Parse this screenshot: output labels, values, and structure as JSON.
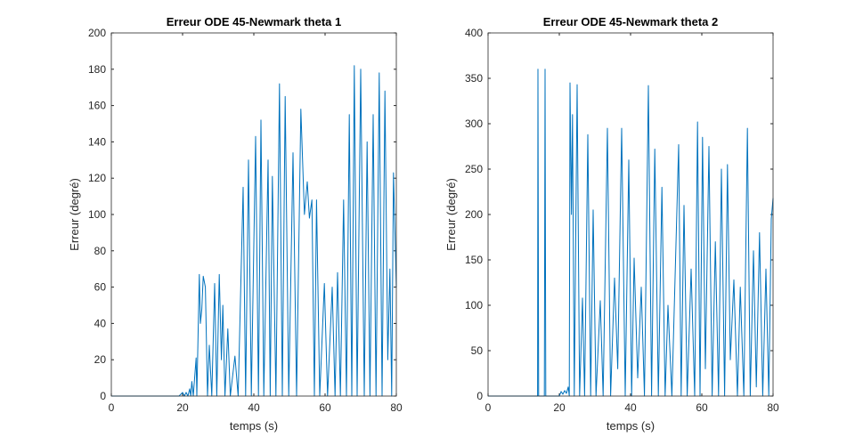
{
  "chart_data": [
    {
      "type": "line",
      "title": "Erreur ODE 45-Newmark theta 1",
      "x_label": "temps (s)",
      "y_label": "Erreur (degré)",
      "xlim": [
        0,
        80
      ],
      "xticks": [
        0,
        20,
        40,
        60,
        80
      ],
      "ylim": [
        0,
        200
      ],
      "yticks": [
        0,
        20,
        40,
        60,
        80,
        100,
        120,
        140,
        160,
        180,
        200
      ],
      "grid": false,
      "color": "#0072bd",
      "x": [
        0,
        19,
        20,
        20.5,
        21,
        21.5,
        22,
        22.3,
        22.6,
        23,
        23.8,
        24,
        24.7,
        25,
        25.4,
        25.8,
        26.4,
        27,
        27.5,
        28.2,
        29,
        29.6,
        30.3,
        30.9,
        31.3,
        31.9,
        32.7,
        33.4,
        34.7,
        35.6,
        37,
        37.7,
        38.5,
        39.3,
        40.5,
        41.3,
        42,
        42.8,
        44,
        44.6,
        45.2,
        46.2,
        47.2,
        48,
        48.8,
        49.8,
        51,
        52,
        53.2,
        54.2,
        55,
        55.6,
        56.3,
        57,
        57.6,
        58.5,
        59.8,
        60.7,
        62,
        62.8,
        63.5,
        64.3,
        65.2,
        66,
        66.8,
        67.5,
        68.2,
        69,
        70,
        71,
        71.8,
        72.6,
        73.5,
        74.3,
        75.2,
        76,
        76.8,
        77.6,
        78.2,
        78.7,
        79.2,
        80
      ],
      "values": [
        0,
        0,
        2,
        0,
        2,
        0,
        4,
        0,
        8,
        0,
        21,
        0,
        67,
        40,
        48,
        66,
        60,
        0,
        28,
        0,
        62,
        0,
        67,
        20,
        50,
        0,
        37,
        0,
        22,
        0,
        115,
        0,
        130,
        0,
        143,
        0,
        152,
        0,
        130,
        0,
        121,
        0,
        172,
        0,
        165,
        0,
        134,
        0,
        158,
        100,
        118,
        98,
        108,
        0,
        108,
        0,
        62,
        0,
        60,
        0,
        68,
        0,
        108,
        0,
        155,
        0,
        182,
        0,
        180,
        0,
        140,
        0,
        155,
        0,
        178,
        0,
        168,
        20,
        70,
        0,
        123,
        60
      ]
    },
    {
      "type": "line",
      "title": "Erreur ODE 45-Newmark theta 2",
      "x_label": "temps (s)",
      "y_label": "Erreur (degré)",
      "xlim": [
        0,
        80
      ],
      "xticks": [
        0,
        20,
        40,
        60,
        80
      ],
      "ylim": [
        0,
        400
      ],
      "yticks": [
        0,
        50,
        100,
        150,
        200,
        250,
        300,
        350,
        400
      ],
      "grid": false,
      "color": "#0072bd",
      "x": [
        0,
        13.9,
        14,
        14.2,
        15.8,
        16,
        16.2,
        20,
        20.5,
        21,
        21.5,
        22,
        22.5,
        22.8,
        23,
        23.4,
        23.7,
        24.2,
        25,
        25.7,
        26.5,
        27.1,
        28,
        28.8,
        29.5,
        30.3,
        31.5,
        32.3,
        33.5,
        34.4,
        35.5,
        36.4,
        37.5,
        38.5,
        39.5,
        40.3,
        41,
        42,
        43,
        43.9,
        45,
        45.9,
        46.8,
        47.8,
        48.8,
        49.7,
        50.5,
        51.6,
        53.5,
        54.2,
        55,
        55.9,
        57,
        58,
        58.8,
        59.5,
        60.2,
        61,
        62,
        62.9,
        63.8,
        64.7,
        65.5,
        66.4,
        67.2,
        68,
        69,
        70,
        70.8,
        71.8,
        72.8,
        73.6,
        74.5,
        75.3,
        76.2,
        77.1,
        78,
        78.8,
        79.5,
        80
      ],
      "values": [
        0,
        0,
        360,
        0,
        0,
        360,
        0,
        0,
        5,
        2,
        6,
        3,
        10,
        0,
        345,
        200,
        310,
        0,
        343,
        0,
        108,
        0,
        288,
        0,
        205,
        0,
        105,
        0,
        295,
        0,
        130,
        30,
        295,
        0,
        260,
        0,
        152,
        20,
        120,
        0,
        342,
        0,
        272,
        0,
        230,
        0,
        100,
        0,
        277,
        0,
        210,
        0,
        140,
        0,
        302,
        0,
        285,
        30,
        275,
        0,
        170,
        0,
        250,
        0,
        255,
        40,
        128,
        0,
        120,
        0,
        295,
        0,
        160,
        10,
        180,
        0,
        140,
        0,
        195,
        218
      ]
    }
  ]
}
